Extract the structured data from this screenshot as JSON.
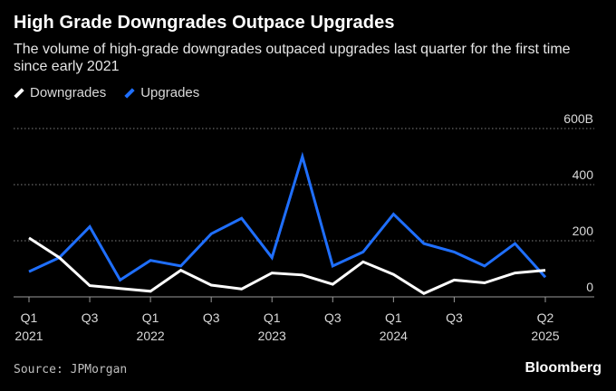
{
  "header": {
    "title": "High Grade Downgrades Outpace Upgrades",
    "subtitle": "The volume of high-grade downgrades outpaced upgrades last quarter for the first time since early 2021"
  },
  "footer": {
    "source": "Source: JPMorgan",
    "brand": "Bloomberg"
  },
  "colors": {
    "background": "#000000",
    "downgrades": "#ffffff",
    "upgrades": "#1f6fff",
    "grid": "#808080",
    "tick_text": "#d9d9d9"
  },
  "chart_data": {
    "type": "line",
    "title": "High Grade Downgrades Outpace Upgrades",
    "subtitle": "The volume of high-grade downgrades outpaced upgrades last quarter for the first time since early 2021",
    "x": [
      "Q1 2021",
      "Q2 2021",
      "Q3 2021",
      "Q4 2021",
      "Q1 2022",
      "Q2 2022",
      "Q3 2022",
      "Q4 2022",
      "Q1 2023",
      "Q2 2023",
      "Q3 2023",
      "Q4 2023",
      "Q1 2024",
      "Q2 2024",
      "Q3 2024",
      "Q4 2024",
      "Q1 2025",
      "Q2 2025"
    ],
    "x_ticks": [
      {
        "index": 0,
        "line1": "Q1",
        "line2": "2021"
      },
      {
        "index": 2,
        "line1": "Q3",
        "line2": ""
      },
      {
        "index": 4,
        "line1": "Q1",
        "line2": "2022"
      },
      {
        "index": 6,
        "line1": "Q3",
        "line2": ""
      },
      {
        "index": 8,
        "line1": "Q1",
        "line2": "2023"
      },
      {
        "index": 10,
        "line1": "Q3",
        "line2": ""
      },
      {
        "index": 12,
        "line1": "Q1",
        "line2": "2024"
      },
      {
        "index": 14,
        "line1": "Q3",
        "line2": ""
      },
      {
        "index": 17,
        "line1": "Q2",
        "line2": "2025"
      }
    ],
    "y_ticks": [
      {
        "value": 0,
        "label": "0"
      },
      {
        "value": 200,
        "label": "200"
      },
      {
        "value": 400,
        "label": "400"
      },
      {
        "value": 600,
        "label": "600B"
      }
    ],
    "ylim": [
      0,
      600
    ],
    "grid": true,
    "legend_position": "top-left",
    "series": [
      {
        "name": "Downgrades",
        "color": "#ffffff",
        "values": [
          210,
          140,
          40,
          30,
          20,
          95,
          42,
          28,
          85,
          78,
          45,
          125,
          80,
          12,
          60,
          50,
          85,
          95
        ]
      },
      {
        "name": "Upgrades",
        "color": "#1f6fff",
        "values": [
          90,
          140,
          250,
          60,
          130,
          110,
          225,
          280,
          140,
          500,
          110,
          160,
          295,
          190,
          160,
          110,
          190,
          70
        ]
      }
    ]
  }
}
